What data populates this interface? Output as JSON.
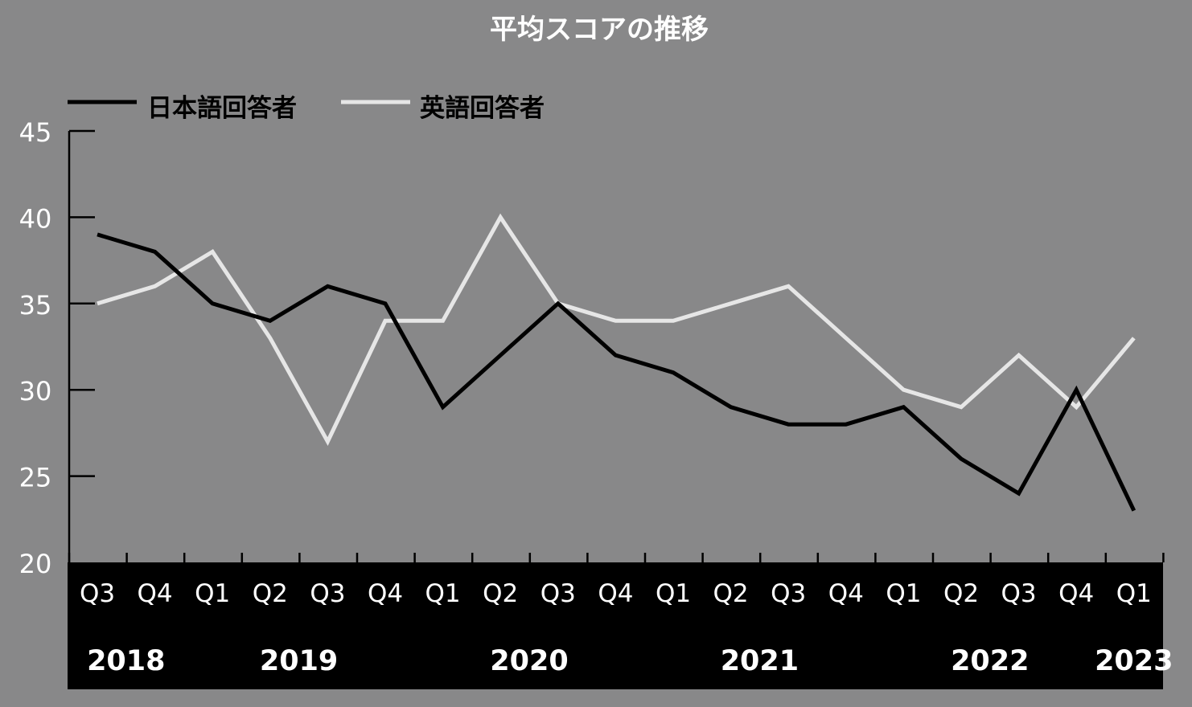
{
  "chart_data": {
    "type": "line",
    "title": "平均スコアの推移",
    "xlabel": "",
    "ylabel": "",
    "ylim": [
      20,
      45
    ],
    "yticks": [
      20,
      25,
      30,
      35,
      40,
      45
    ],
    "categories": [
      "Q3",
      "Q4",
      "Q1",
      "Q2",
      "Q3",
      "Q4",
      "Q1",
      "Q2",
      "Q3",
      "Q4",
      "Q1",
      "Q2",
      "Q3",
      "Q4",
      "Q1",
      "Q2",
      "Q3",
      "Q4",
      "Q1"
    ],
    "years": [
      {
        "label": "2018",
        "start": 0,
        "end": 1
      },
      {
        "label": "2019",
        "start": 2,
        "end": 5
      },
      {
        "label": "2020",
        "start": 6,
        "end": 9
      },
      {
        "label": "2021",
        "start": 10,
        "end": 13
      },
      {
        "label": "2022",
        "start": 14,
        "end": 17
      },
      {
        "label": "2023",
        "start": 18,
        "end": 18
      }
    ],
    "series": [
      {
        "name": "日本語回答者",
        "color": "#000000",
        "values": [
          39,
          38,
          35,
          34,
          36,
          35,
          29,
          32,
          35,
          32,
          31,
          29,
          28,
          28,
          29,
          26,
          24,
          30,
          23
        ]
      },
      {
        "name": "英語回答者",
        "color": "#e6e6e6",
        "values": [
          35,
          36,
          38,
          33,
          27,
          34,
          34,
          40,
          35,
          34,
          34,
          35,
          36,
          33,
          30,
          29,
          32,
          29,
          33
        ]
      }
    ],
    "legend_position": "top-left",
    "grid": false
  },
  "colors": {
    "background": "#888889",
    "axis_band": "#000000",
    "tick_text": "#ffffff"
  }
}
